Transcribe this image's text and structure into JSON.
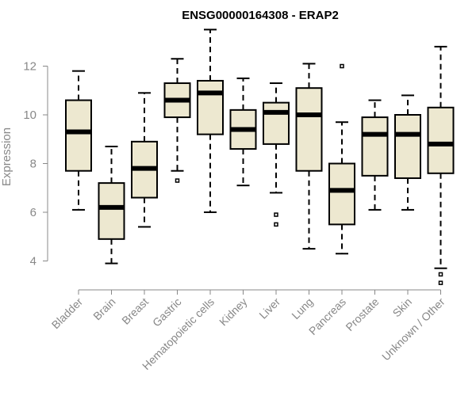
{
  "chart_data": {
    "type": "boxplot",
    "title": "ENSG00000164308 - ERAP2",
    "xlabel": "",
    "ylabel": "Expression",
    "ylim": [
      3.0,
      13.6
    ],
    "yticks": [
      4,
      6,
      8,
      10,
      12
    ],
    "box_fill": "#ede8d0",
    "categories": [
      "Bladder",
      "Brain",
      "Breast",
      "Gastric",
      "Hematopoietic cells",
      "Kidney",
      "Liver",
      "Lung",
      "Pancreas",
      "Prostate",
      "Skin",
      "Unknown / Other"
    ],
    "boxes": [
      {
        "whisker_low": 6.1,
        "q1": 7.7,
        "median": 9.3,
        "q3": 10.6,
        "whisker_high": 11.8,
        "outliers": []
      },
      {
        "whisker_low": 3.9,
        "q1": 4.9,
        "median": 6.2,
        "q3": 7.2,
        "whisker_high": 8.7,
        "outliers": []
      },
      {
        "whisker_low": 5.4,
        "q1": 6.6,
        "median": 7.8,
        "q3": 8.9,
        "whisker_high": 10.9,
        "outliers": []
      },
      {
        "whisker_low": 7.7,
        "q1": 9.9,
        "median": 10.6,
        "q3": 11.3,
        "whisker_high": 12.3,
        "outliers": [
          7.3
        ]
      },
      {
        "whisker_low": 6.0,
        "q1": 9.2,
        "median": 10.9,
        "q3": 11.4,
        "whisker_high": 13.5,
        "outliers": []
      },
      {
        "whisker_low": 7.1,
        "q1": 8.6,
        "median": 9.4,
        "q3": 10.2,
        "whisker_high": 11.5,
        "outliers": []
      },
      {
        "whisker_low": 6.8,
        "q1": 8.8,
        "median": 10.1,
        "q3": 10.5,
        "whisker_high": 11.3,
        "outliers": [
          5.9,
          5.5
        ]
      },
      {
        "whisker_low": 4.5,
        "q1": 7.7,
        "median": 10.0,
        "q3": 11.1,
        "whisker_high": 12.1,
        "outliers": []
      },
      {
        "whisker_low": 4.3,
        "q1": 5.5,
        "median": 6.9,
        "q3": 8.0,
        "whisker_high": 9.7,
        "outliers": [
          12.0
        ]
      },
      {
        "whisker_low": 6.1,
        "q1": 7.5,
        "median": 9.2,
        "q3": 9.9,
        "whisker_high": 10.6,
        "outliers": []
      },
      {
        "whisker_low": 6.1,
        "q1": 7.4,
        "median": 9.2,
        "q3": 10.0,
        "whisker_high": 10.8,
        "outliers": []
      },
      {
        "whisker_low": 3.7,
        "q1": 7.6,
        "median": 8.8,
        "q3": 10.3,
        "whisker_high": 12.8,
        "outliers": [
          3.45,
          3.1
        ]
      }
    ]
  }
}
